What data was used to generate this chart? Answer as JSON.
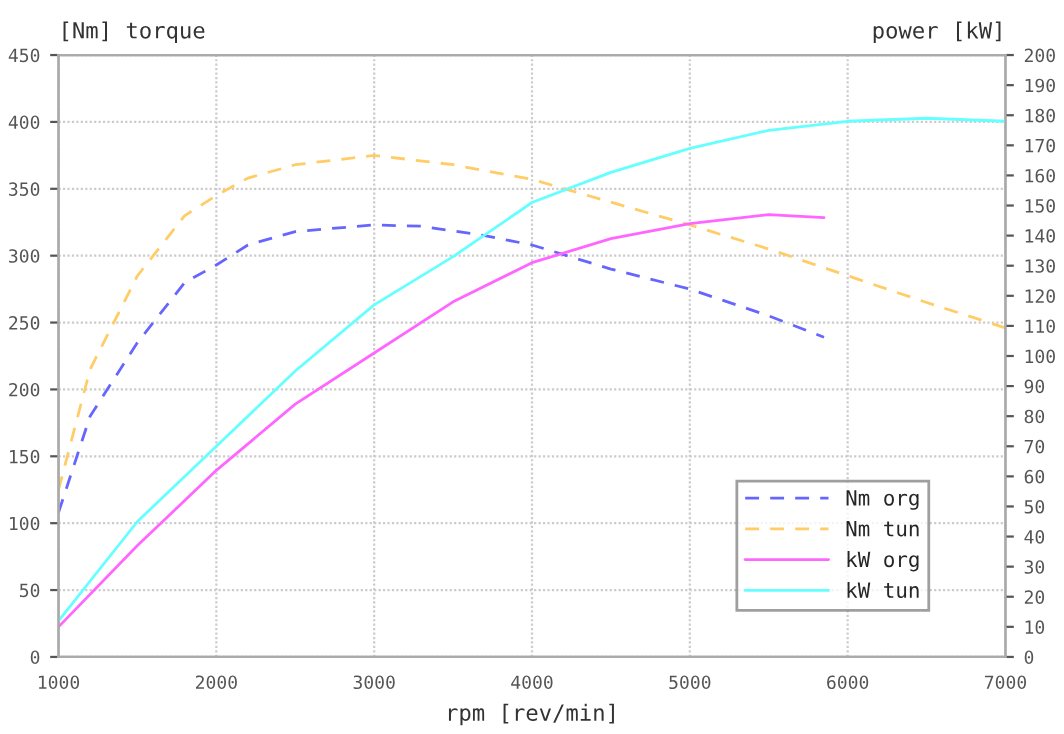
{
  "chart_data": {
    "type": "line",
    "xlabel": "rpm [rev/min]",
    "ylabel": "[Nm] torque",
    "y2label": "power [kW]",
    "xlim": [
      1000,
      7000
    ],
    "xticks": [
      1000,
      2000,
      3000,
      4000,
      5000,
      6000,
      7000
    ],
    "ylim": [
      0,
      450
    ],
    "yticks": [
      0,
      50,
      100,
      150,
      200,
      250,
      300,
      350,
      400,
      450
    ],
    "y2lim": [
      0,
      200
    ],
    "y2ticks": [
      0,
      10,
      20,
      30,
      40,
      50,
      60,
      70,
      80,
      90,
      100,
      110,
      120,
      130,
      140,
      150,
      160,
      170,
      180,
      190,
      200
    ],
    "grid": true,
    "legend": "bottom right",
    "series": [
      {
        "name": "Nm org",
        "color": "#6666ff",
        "line_style": "dashed",
        "x": [
          1000,
          1200,
          1500,
          1800,
          2000,
          2200,
          2500,
          3000,
          3300,
          3700,
          4000,
          4500,
          5000,
          5500,
          5850
        ],
        "values": [
          108,
          180,
          235,
          280,
          293,
          308,
          318,
          323,
          322,
          315,
          308,
          290,
          275,
          255,
          239
        ]
      },
      {
        "name": "Nm tun",
        "color": "#ffcc66",
        "line_style": "dashed",
        "x": [
          1000,
          1200,
          1500,
          1800,
          2000,
          2200,
          2500,
          3000,
          3500,
          4000,
          4500,
          5000,
          5500,
          6000,
          6500,
          7000
        ],
        "values": [
          125,
          215,
          285,
          330,
          345,
          358,
          368,
          375,
          368,
          357,
          340,
          323,
          305,
          285,
          265,
          246
        ]
      },
      {
        "name": "kW org",
        "color": "#ff66ff",
        "line_style": "solid",
        "axis": "y2",
        "x": [
          1000,
          1500,
          2000,
          2500,
          3000,
          3500,
          4000,
          4500,
          5000,
          5500,
          5850
        ],
        "values": [
          10,
          37,
          62,
          84,
          101,
          118,
          131,
          139,
          144,
          147,
          146
        ]
      },
      {
        "name": "kW tun",
        "color": "#66ffff",
        "line_style": "solid",
        "axis": "y2",
        "x": [
          1000,
          1500,
          2000,
          2500,
          3000,
          3500,
          4000,
          4500,
          5000,
          5500,
          6000,
          6500,
          7000
        ],
        "values": [
          12,
          45,
          70,
          95,
          117,
          133,
          151,
          161,
          169,
          175,
          178,
          179,
          178
        ]
      }
    ]
  }
}
